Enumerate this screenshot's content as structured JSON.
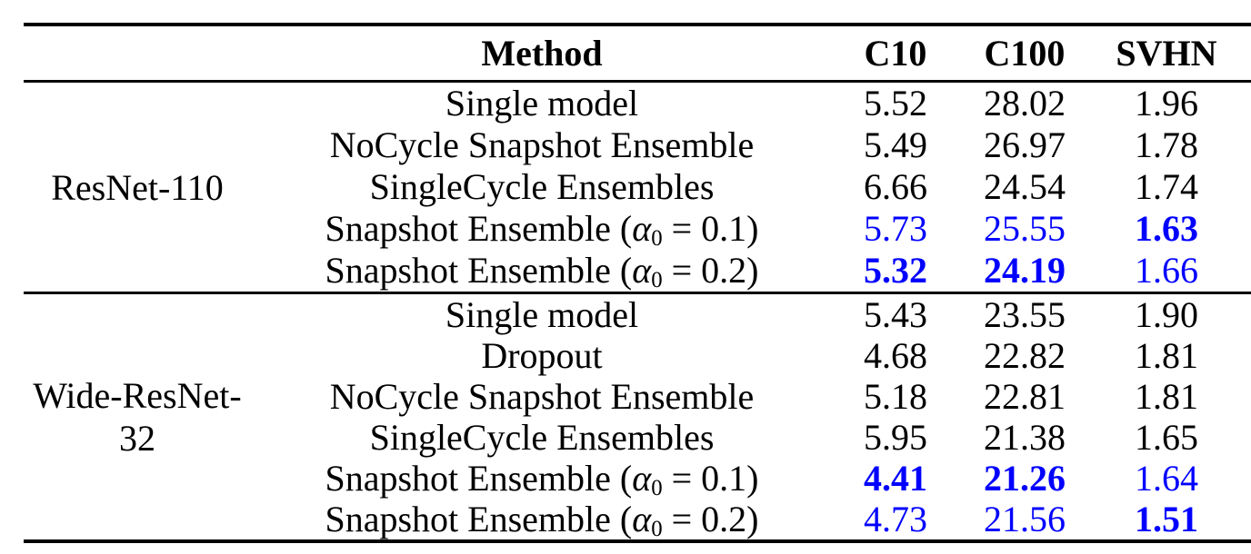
{
  "page": {
    "background": "#ffffff"
  },
  "table": {
    "header": {
      "method": "Method",
      "c10": "C10",
      "c100": "C100",
      "svhn": "SVHN"
    },
    "text_color": "#000000",
    "highlight_color": "#0000ff",
    "sections": [
      {
        "model": "ResNet-110",
        "rows": [
          {
            "method": [
              {
                "t": "Single model"
              }
            ],
            "values": [
              {
                "t": "5.52",
                "s": "k"
              },
              {
                "t": "28.02",
                "s": "k"
              },
              {
                "t": "1.96",
                "s": "k"
              }
            ]
          },
          {
            "method": [
              {
                "t": "NoCycle Snapshot Ensemble"
              }
            ],
            "values": [
              {
                "t": "5.49",
                "s": "k"
              },
              {
                "t": "26.97",
                "s": "k"
              },
              {
                "t": "1.78",
                "s": "k"
              }
            ]
          },
          {
            "method": [
              {
                "t": "SingleCycle Ensembles"
              }
            ],
            "values": [
              {
                "t": "6.66",
                "s": "k"
              },
              {
                "t": "24.54",
                "s": "k"
              },
              {
                "t": "1.74",
                "s": "k"
              }
            ]
          },
          {
            "method": [
              {
                "t": "Snapshot Ensemble ("
              },
              {
                "t": "α",
                "i": true
              },
              {
                "t": "0",
                "sub": true
              },
              {
                "t": " = 0.1)"
              }
            ],
            "values": [
              {
                "t": "5.73",
                "s": "b"
              },
              {
                "t": "25.55",
                "s": "b"
              },
              {
                "t": "1.63",
                "s": "bb"
              }
            ]
          },
          {
            "method": [
              {
                "t": "Snapshot Ensemble ("
              },
              {
                "t": "α",
                "i": true
              },
              {
                "t": "0",
                "sub": true
              },
              {
                "t": " = 0.2)"
              }
            ],
            "values": [
              {
                "t": "5.32",
                "s": "bb"
              },
              {
                "t": "24.19",
                "s": "bb"
              },
              {
                "t": "1.66",
                "s": "b"
              }
            ]
          }
        ]
      },
      {
        "model": "Wide-ResNet-32",
        "rows": [
          {
            "method": [
              {
                "t": "Single model"
              }
            ],
            "values": [
              {
                "t": "5.43",
                "s": "k"
              },
              {
                "t": "23.55",
                "s": "k"
              },
              {
                "t": "1.90",
                "s": "k"
              }
            ]
          },
          {
            "method": [
              {
                "t": "Dropout"
              }
            ],
            "values": [
              {
                "t": "4.68",
                "s": "k"
              },
              {
                "t": "22.82",
                "s": "k"
              },
              {
                "t": "1.81",
                "s": "k"
              }
            ]
          },
          {
            "method": [
              {
                "t": "NoCycle Snapshot Ensemble"
              }
            ],
            "values": [
              {
                "t": "5.18",
                "s": "k"
              },
              {
                "t": "22.81",
                "s": "k"
              },
              {
                "t": "1.81",
                "s": "k"
              }
            ]
          },
          {
            "method": [
              {
                "t": "SingleCycle Ensembles"
              }
            ],
            "values": [
              {
                "t": "5.95",
                "s": "k"
              },
              {
                "t": "21.38",
                "s": "k"
              },
              {
                "t": "1.65",
                "s": "k"
              }
            ]
          },
          {
            "method": [
              {
                "t": "Snapshot Ensemble ("
              },
              {
                "t": "α",
                "i": true
              },
              {
                "t": "0",
                "sub": true
              },
              {
                "t": " = 0.1)"
              }
            ],
            "values": [
              {
                "t": "4.41",
                "s": "bb"
              },
              {
                "t": "21.26",
                "s": "bb"
              },
              {
                "t": "1.64",
                "s": "b"
              }
            ]
          },
          {
            "method": [
              {
                "t": "Snapshot Ensemble ("
              },
              {
                "t": "α",
                "i": true
              },
              {
                "t": "0",
                "sub": true
              },
              {
                "t": " = 0.2)"
              }
            ],
            "values": [
              {
                "t": "4.73",
                "s": "b"
              },
              {
                "t": "21.56",
                "s": "b"
              },
              {
                "t": "1.51",
                "s": "bb"
              }
            ]
          }
        ]
      }
    ]
  }
}
